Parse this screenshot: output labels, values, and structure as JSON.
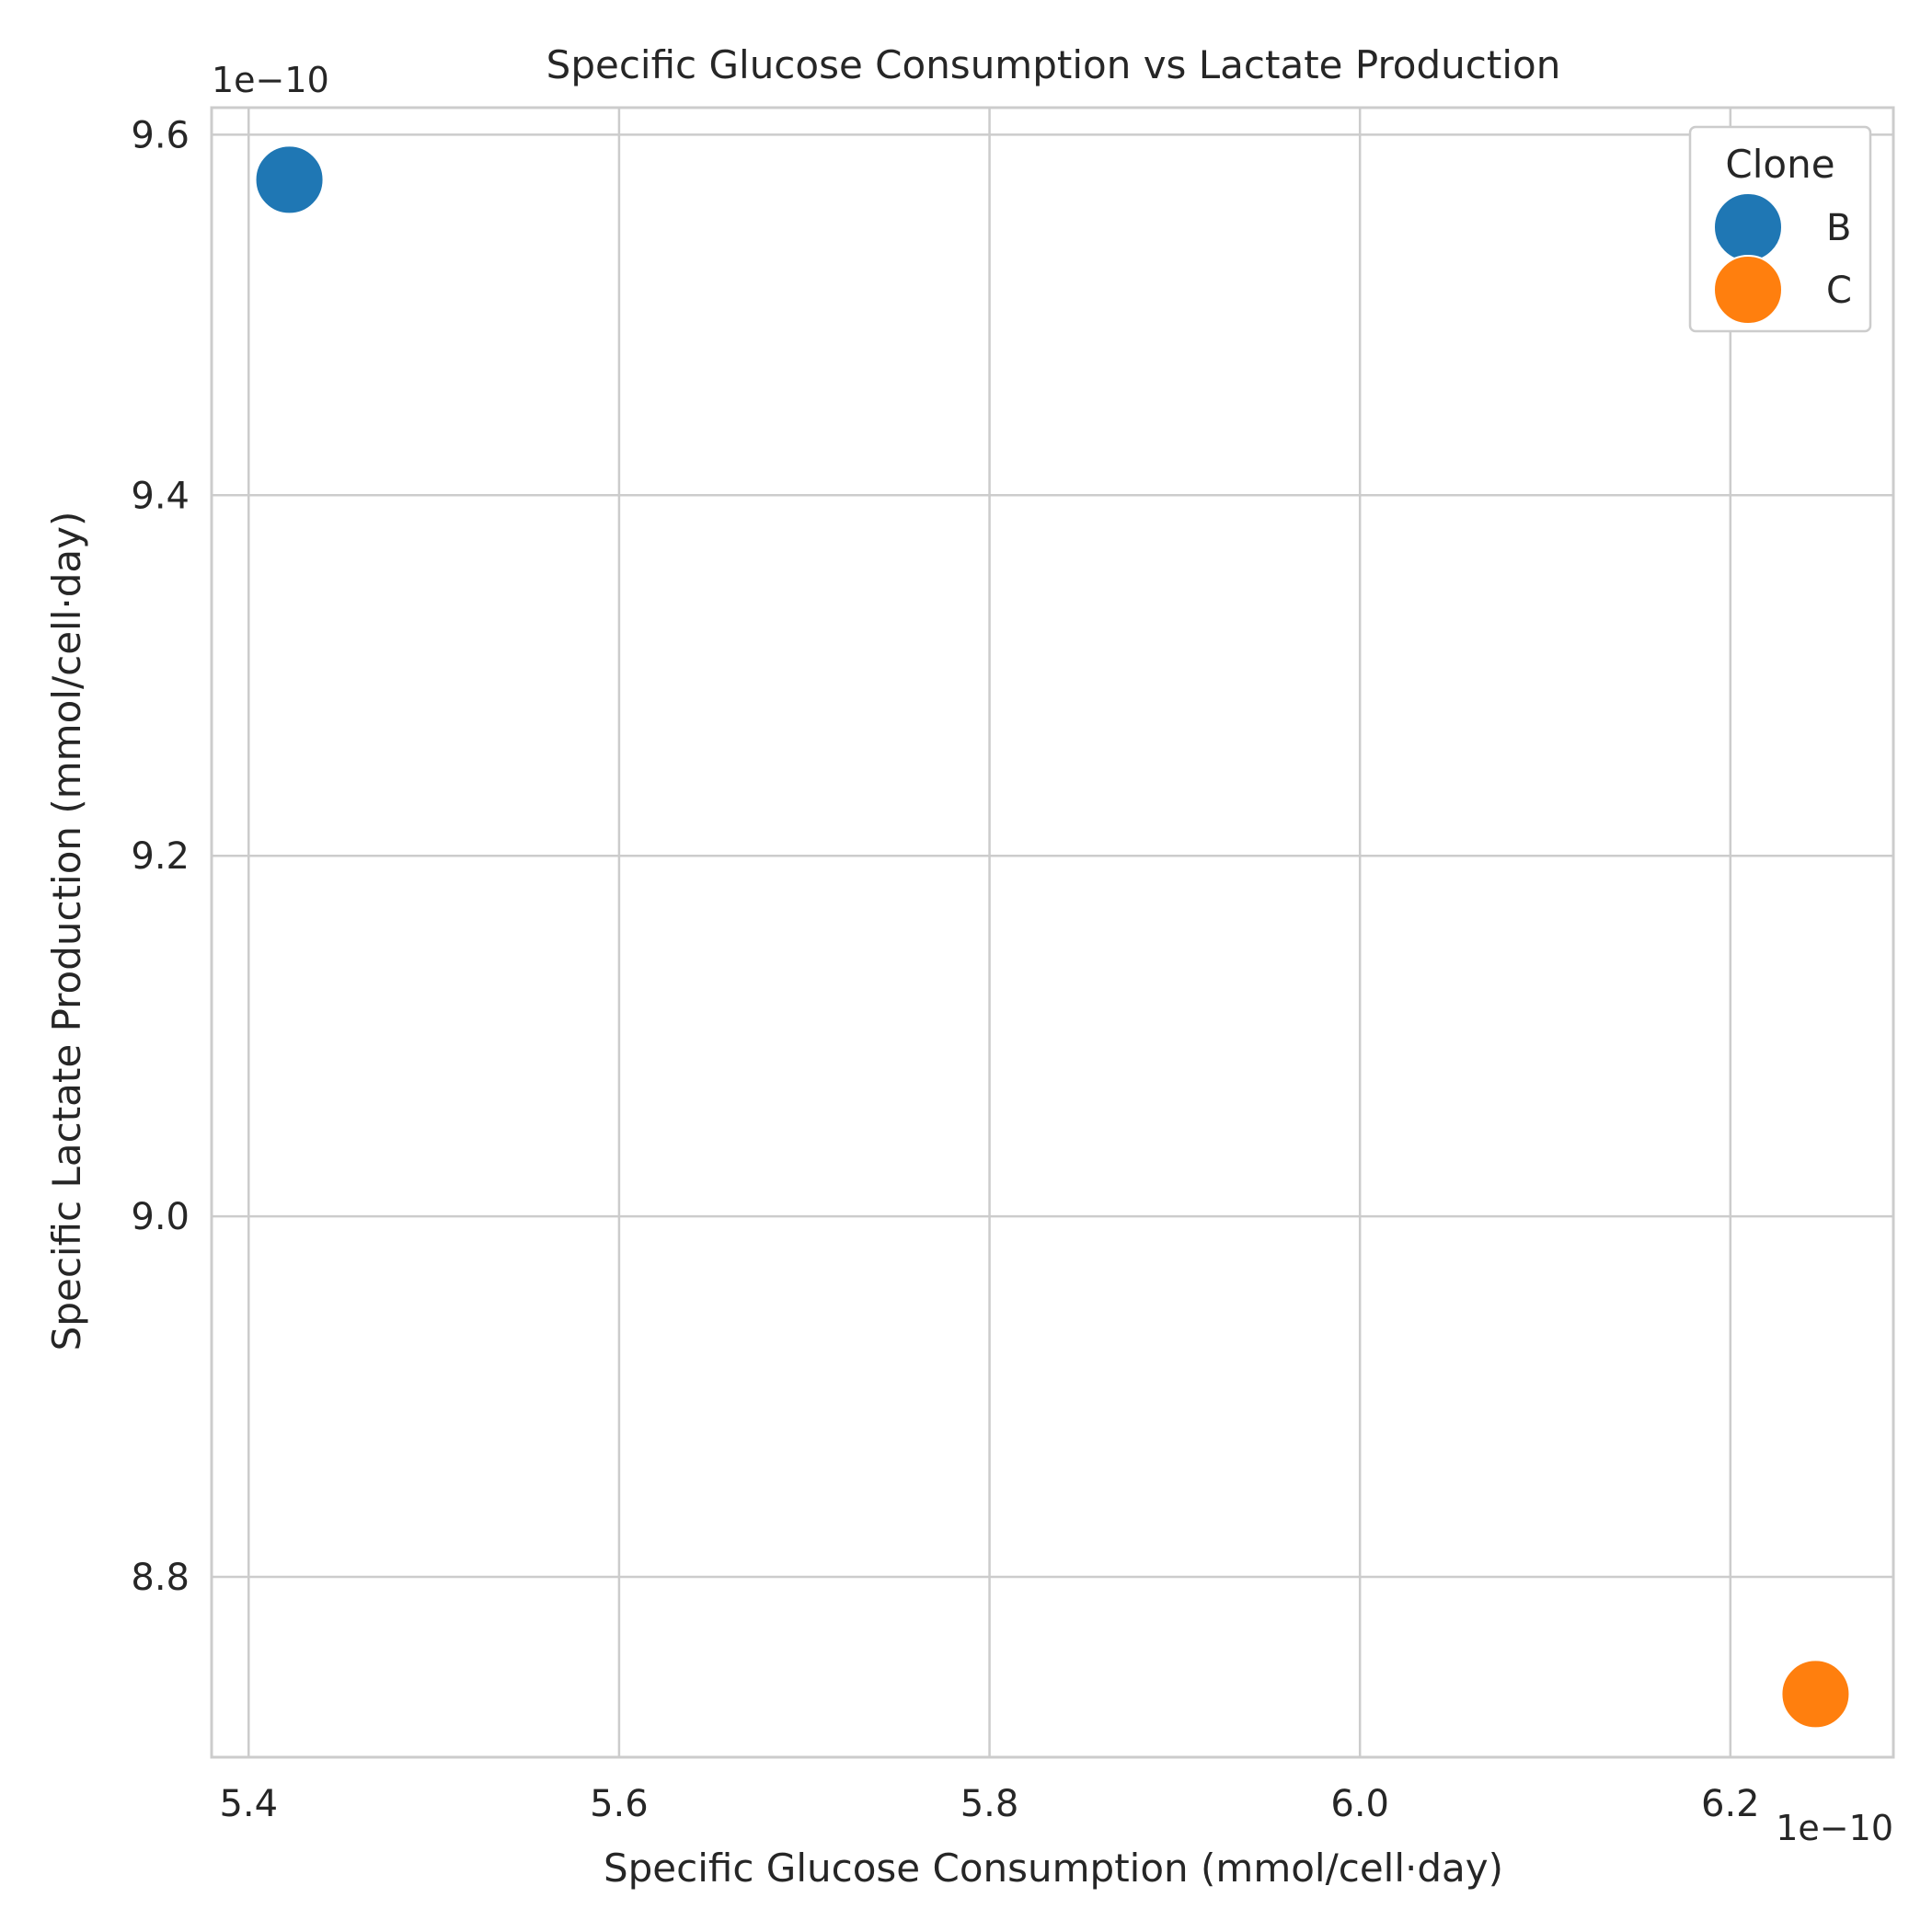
{
  "chart_data": {
    "type": "scatter",
    "title": "Specific Glucose Consumption vs Lactate Production",
    "xlabel": "Specific Glucose Consumption (mmol/cell·day)",
    "ylabel": "Specific Lactate Production (mmol/cell·day)",
    "x_offset_label": "1e−10",
    "y_offset_label": "1e−10",
    "x_scale_factor": 1e-10,
    "y_scale_factor": 1e-10,
    "xlim": [
      5.38,
      6.288
    ],
    "ylim": [
      8.7,
      9.615
    ],
    "xticks": [
      5.4,
      5.6,
      5.8,
      6.0,
      6.2
    ],
    "yticks": [
      8.8,
      9.0,
      9.2,
      9.4,
      9.6
    ],
    "xtick_labels": [
      "5.4",
      "5.6",
      "5.8",
      "6.0",
      "6.2"
    ],
    "ytick_labels": [
      "8.8",
      "9.0",
      "9.2",
      "9.4",
      "9.6"
    ],
    "grid": true,
    "legend": {
      "title": "Clone",
      "placement": "top-right",
      "entries": [
        {
          "label": "B",
          "color": "#1f77b4"
        },
        {
          "label": "C",
          "color": "#ff7f0e"
        }
      ]
    },
    "series": [
      {
        "name": "B",
        "color": "#1f77b4",
        "points": [
          {
            "x": 5.422,
            "y": 9.575
          }
        ]
      },
      {
        "name": "C",
        "color": "#ff7f0e",
        "points": [
          {
            "x": 6.246,
            "y": 8.735
          }
        ]
      }
    ]
  }
}
